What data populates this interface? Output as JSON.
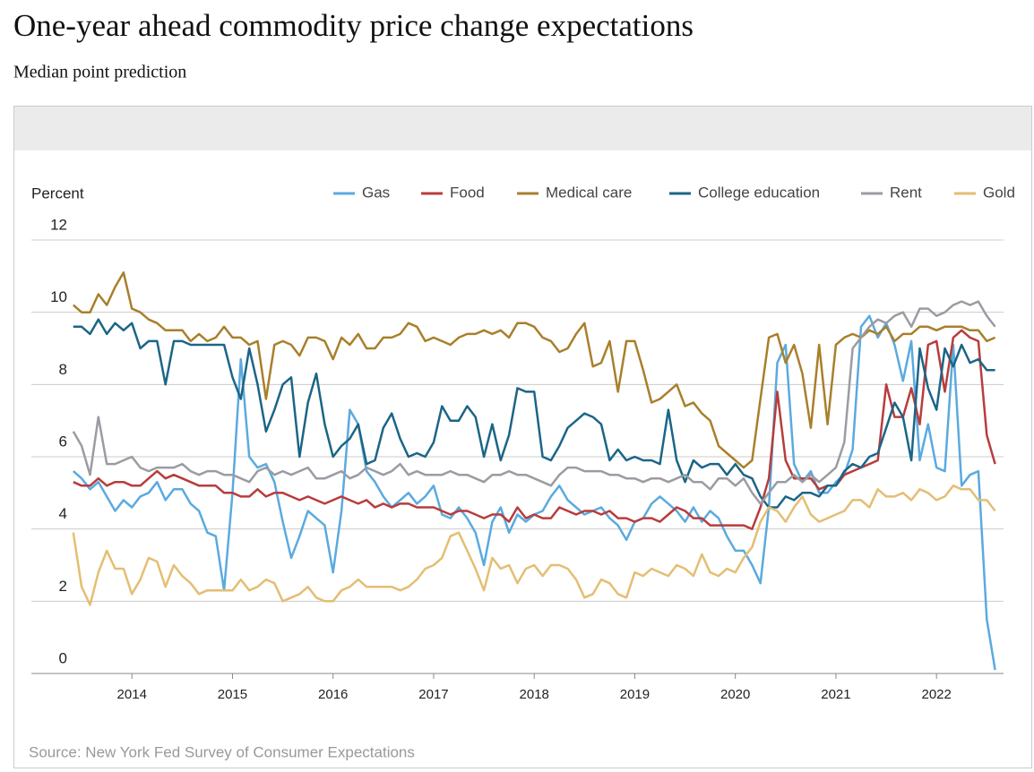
{
  "chart_data": {
    "type": "line",
    "title": "One-year ahead commodity price change expectations",
    "subtitle": "Median point prediction",
    "y_label": "Percent",
    "source": "Source: New York Fed Survey of Consumer Expectations",
    "grid": true,
    "legend": "top-right",
    "xlim": [
      "2013-01",
      "2022-09"
    ],
    "xticks": [
      2014,
      2015,
      2016,
      2017,
      2018,
      2019,
      2020,
      2021,
      2022
    ],
    "ylim": [
      0,
      12
    ],
    "yticks": [
      0,
      2,
      4,
      6,
      8,
      10,
      12
    ],
    "x": [
      "2013-06",
      "2013-07",
      "2013-08",
      "2013-09",
      "2013-10",
      "2013-11",
      "2013-12",
      "2014-01",
      "2014-02",
      "2014-03",
      "2014-04",
      "2014-05",
      "2014-06",
      "2014-07",
      "2014-08",
      "2014-09",
      "2014-10",
      "2014-11",
      "2014-12",
      "2015-01",
      "2015-02",
      "2015-03",
      "2015-04",
      "2015-05",
      "2015-06",
      "2015-07",
      "2015-08",
      "2015-09",
      "2015-10",
      "2015-11",
      "2015-12",
      "2016-01",
      "2016-02",
      "2016-03",
      "2016-04",
      "2016-05",
      "2016-06",
      "2016-07",
      "2016-08",
      "2016-09",
      "2016-10",
      "2016-11",
      "2016-12",
      "2017-01",
      "2017-02",
      "2017-03",
      "2017-04",
      "2017-05",
      "2017-06",
      "2017-07",
      "2017-08",
      "2017-09",
      "2017-10",
      "2017-11",
      "2017-12",
      "2018-01",
      "2018-02",
      "2018-03",
      "2018-04",
      "2018-05",
      "2018-06",
      "2018-07",
      "2018-08",
      "2018-09",
      "2018-10",
      "2018-11",
      "2018-12",
      "2019-01",
      "2019-02",
      "2019-03",
      "2019-04",
      "2019-05",
      "2019-06",
      "2019-07",
      "2019-08",
      "2019-09",
      "2019-10",
      "2019-11",
      "2019-12",
      "2020-01",
      "2020-02",
      "2020-03",
      "2020-04",
      "2020-05",
      "2020-06",
      "2020-07",
      "2020-08",
      "2020-09",
      "2020-10",
      "2020-11",
      "2020-12",
      "2021-01",
      "2021-02",
      "2021-03",
      "2021-04",
      "2021-05",
      "2021-06",
      "2021-07",
      "2021-08",
      "2021-09",
      "2021-10",
      "2021-11",
      "2021-12",
      "2022-01",
      "2022-02",
      "2022-03",
      "2022-04",
      "2022-05",
      "2022-06",
      "2022-07",
      "2022-08"
    ],
    "series": [
      {
        "name": "Gas",
        "color": "#5aaadf",
        "values": [
          5.6,
          5.4,
          5.1,
          5.3,
          4.9,
          4.5,
          4.8,
          4.6,
          4.9,
          5.0,
          5.3,
          4.8,
          5.1,
          5.1,
          4.7,
          4.5,
          3.9,
          3.8,
          2.3,
          5.0,
          8.7,
          6.0,
          5.7,
          5.8,
          5.3,
          4.2,
          3.2,
          3.8,
          4.5,
          4.3,
          4.1,
          2.8,
          4.5,
          7.3,
          6.9,
          5.6,
          5.3,
          4.9,
          4.6,
          4.8,
          5.0,
          4.7,
          4.9,
          5.2,
          4.4,
          4.3,
          4.6,
          4.3,
          3.9,
          3.0,
          4.2,
          4.6,
          3.9,
          4.4,
          4.2,
          4.4,
          4.5,
          4.9,
          5.2,
          4.8,
          4.6,
          4.4,
          4.5,
          4.6,
          4.3,
          4.1,
          3.7,
          4.2,
          4.3,
          4.7,
          4.9,
          4.7,
          4.5,
          4.2,
          4.6,
          4.2,
          4.5,
          4.3,
          3.8,
          3.4,
          3.4,
          3.0,
          2.5,
          4.6,
          8.6,
          9.1,
          5.8,
          5.3,
          5.6,
          5.0,
          5.0,
          5.3,
          5.5,
          6.2,
          9.6,
          9.9,
          9.3,
          9.7,
          9.1,
          8.1,
          9.2,
          5.9,
          6.9,
          5.7,
          5.6,
          9.1,
          5.2,
          5.5,
          5.6,
          1.5,
          0.1
        ]
      },
      {
        "name": "Food",
        "color": "#b83c3c",
        "values": [
          5.3,
          5.2,
          5.2,
          5.4,
          5.2,
          5.3,
          5.3,
          5.2,
          5.2,
          5.4,
          5.6,
          5.4,
          5.5,
          5.4,
          5.3,
          5.2,
          5.2,
          5.2,
          5.0,
          5.0,
          4.9,
          4.9,
          5.1,
          4.9,
          5.0,
          5.0,
          4.9,
          4.8,
          4.9,
          4.8,
          4.7,
          4.8,
          4.9,
          4.8,
          4.7,
          4.8,
          4.6,
          4.7,
          4.6,
          4.7,
          4.7,
          4.6,
          4.6,
          4.6,
          4.5,
          4.4,
          4.5,
          4.5,
          4.4,
          4.3,
          4.4,
          4.4,
          4.2,
          4.6,
          4.3,
          4.4,
          4.3,
          4.3,
          4.6,
          4.5,
          4.4,
          4.5,
          4.5,
          4.4,
          4.5,
          4.3,
          4.3,
          4.2,
          4.3,
          4.3,
          4.2,
          4.4,
          4.6,
          4.5,
          4.3,
          4.3,
          4.1,
          4.1,
          4.1,
          4.1,
          4.1,
          4.0,
          4.6,
          5.4,
          7.8,
          5.9,
          5.4,
          5.4,
          5.4,
          5.1,
          5.2,
          5.2,
          5.5,
          5.6,
          5.7,
          5.8,
          5.9,
          8.0,
          7.1,
          7.1,
          7.9,
          6.9,
          9.1,
          9.2,
          7.8,
          9.3,
          9.5,
          9.3,
          9.2,
          6.6,
          5.8
        ]
      },
      {
        "name": "Medical care",
        "color": "#a97f2b",
        "values": [
          10.2,
          10.0,
          10.0,
          10.5,
          10.2,
          10.7,
          11.1,
          10.1,
          10.0,
          9.8,
          9.7,
          9.5,
          9.5,
          9.5,
          9.2,
          9.4,
          9.2,
          9.3,
          9.6,
          9.3,
          9.3,
          9.1,
          9.2,
          7.6,
          9.1,
          9.2,
          9.1,
          8.8,
          9.3,
          9.3,
          9.2,
          8.7,
          9.3,
          9.1,
          9.4,
          9.0,
          9.0,
          9.3,
          9.3,
          9.4,
          9.7,
          9.6,
          9.2,
          9.3,
          9.2,
          9.1,
          9.3,
          9.4,
          9.4,
          9.5,
          9.4,
          9.5,
          9.3,
          9.7,
          9.7,
          9.6,
          9.3,
          9.2,
          8.9,
          9.0,
          9.4,
          9.7,
          8.5,
          8.6,
          9.2,
          7.8,
          9.2,
          9.2,
          8.4,
          7.5,
          7.6,
          7.8,
          8.0,
          7.4,
          7.5,
          7.2,
          7.0,
          6.3,
          6.1,
          5.9,
          5.7,
          5.9,
          7.6,
          9.3,
          9.4,
          8.6,
          9.1,
          8.3,
          6.8,
          9.1,
          6.9,
          9.1,
          9.3,
          9.4,
          9.3,
          9.5,
          9.4,
          9.6,
          9.2,
          9.4,
          9.4,
          9.6,
          9.6,
          9.5,
          9.6,
          9.6,
          9.6,
          9.5,
          9.5,
          9.2,
          9.3
        ]
      },
      {
        "name": "College education",
        "color": "#1b6587",
        "values": [
          9.6,
          9.6,
          9.4,
          9.8,
          9.4,
          9.7,
          9.5,
          9.7,
          9.0,
          9.2,
          9.2,
          8.0,
          9.2,
          9.2,
          9.1,
          9.1,
          9.1,
          9.1,
          9.1,
          8.2,
          7.6,
          9.0,
          8.0,
          6.7,
          7.3,
          8.0,
          8.2,
          6.0,
          7.5,
          8.3,
          6.9,
          6.0,
          6.3,
          6.5,
          6.9,
          5.8,
          5.9,
          6.8,
          7.2,
          6.5,
          6.0,
          6.1,
          6.0,
          6.4,
          7.4,
          7.0,
          7.0,
          7.4,
          7.1,
          6.0,
          6.9,
          5.9,
          6.6,
          7.9,
          7.8,
          7.8,
          6.0,
          5.9,
          6.3,
          6.8,
          7.0,
          7.2,
          7.1,
          6.9,
          5.9,
          6.2,
          5.9,
          6.0,
          5.9,
          5.9,
          5.8,
          7.3,
          5.9,
          5.3,
          5.9,
          5.7,
          5.8,
          5.8,
          5.5,
          5.8,
          5.5,
          5.4,
          4.9,
          4.6,
          4.6,
          4.9,
          4.8,
          5.0,
          5.0,
          4.9,
          5.2,
          5.2,
          5.6,
          5.8,
          5.7,
          6.0,
          6.1,
          6.8,
          7.5,
          7.1,
          5.9,
          9.0,
          7.9,
          7.3,
          9.0,
          8.5,
          9.1,
          8.6,
          8.7,
          8.4,
          8.4
        ]
      },
      {
        "name": "Rent",
        "color": "#9b9ba3",
        "values": [
          6.7,
          6.3,
          5.5,
          7.1,
          5.8,
          5.8,
          5.9,
          6.0,
          5.7,
          5.6,
          5.7,
          5.7,
          5.7,
          5.8,
          5.6,
          5.5,
          5.6,
          5.6,
          5.5,
          5.5,
          5.4,
          5.3,
          5.6,
          5.7,
          5.5,
          5.6,
          5.5,
          5.6,
          5.7,
          5.4,
          5.4,
          5.5,
          5.6,
          5.4,
          5.5,
          5.7,
          5.6,
          5.5,
          5.6,
          5.8,
          5.5,
          5.6,
          5.5,
          5.5,
          5.5,
          5.6,
          5.5,
          5.5,
          5.4,
          5.3,
          5.5,
          5.5,
          5.6,
          5.5,
          5.5,
          5.4,
          5.3,
          5.2,
          5.5,
          5.7,
          5.7,
          5.6,
          5.6,
          5.6,
          5.5,
          5.5,
          5.4,
          5.4,
          5.3,
          5.4,
          5.4,
          5.3,
          5.4,
          5.5,
          5.3,
          5.3,
          5.1,
          5.4,
          5.4,
          5.2,
          5.4,
          5.0,
          4.7,
          5.0,
          5.3,
          5.3,
          5.5,
          5.3,
          5.5,
          5.3,
          5.5,
          5.7,
          6.4,
          9.0,
          9.3,
          9.6,
          9.8,
          9.7,
          9.9,
          10.0,
          9.6,
          10.1,
          10.1,
          9.9,
          10.0,
          10.2,
          10.3,
          10.2,
          10.3,
          9.9,
          9.6
        ]
      },
      {
        "name": "Gold",
        "color": "#e4be73",
        "values": [
          3.9,
          2.4,
          1.9,
          2.8,
          3.4,
          2.9,
          2.9,
          2.2,
          2.6,
          3.2,
          3.1,
          2.4,
          3.0,
          2.7,
          2.5,
          2.2,
          2.3,
          2.3,
          2.3,
          2.3,
          2.6,
          2.3,
          2.4,
          2.6,
          2.5,
          2.0,
          2.1,
          2.2,
          2.4,
          2.1,
          2.0,
          2.0,
          2.3,
          2.4,
          2.6,
          2.4,
          2.4,
          2.4,
          2.4,
          2.3,
          2.4,
          2.6,
          2.9,
          3.0,
          3.2,
          3.8,
          3.9,
          3.4,
          2.9,
          2.3,
          3.2,
          2.9,
          3.0,
          2.5,
          2.9,
          3.0,
          2.7,
          3.0,
          3.0,
          2.9,
          2.6,
          2.1,
          2.2,
          2.6,
          2.5,
          2.2,
          2.1,
          2.8,
          2.7,
          2.9,
          2.8,
          2.7,
          3.0,
          2.9,
          2.7,
          3.3,
          2.8,
          2.7,
          2.9,
          2.8,
          3.2,
          3.5,
          4.2,
          4.6,
          4.5,
          4.2,
          4.6,
          4.9,
          4.4,
          4.2,
          4.3,
          4.4,
          4.5,
          4.8,
          4.8,
          4.6,
          5.1,
          4.9,
          4.9,
          5.0,
          4.8,
          5.1,
          5.0,
          4.8,
          4.9,
          5.2,
          5.1,
          5.1,
          4.8,
          4.8,
          4.5
        ]
      }
    ]
  }
}
